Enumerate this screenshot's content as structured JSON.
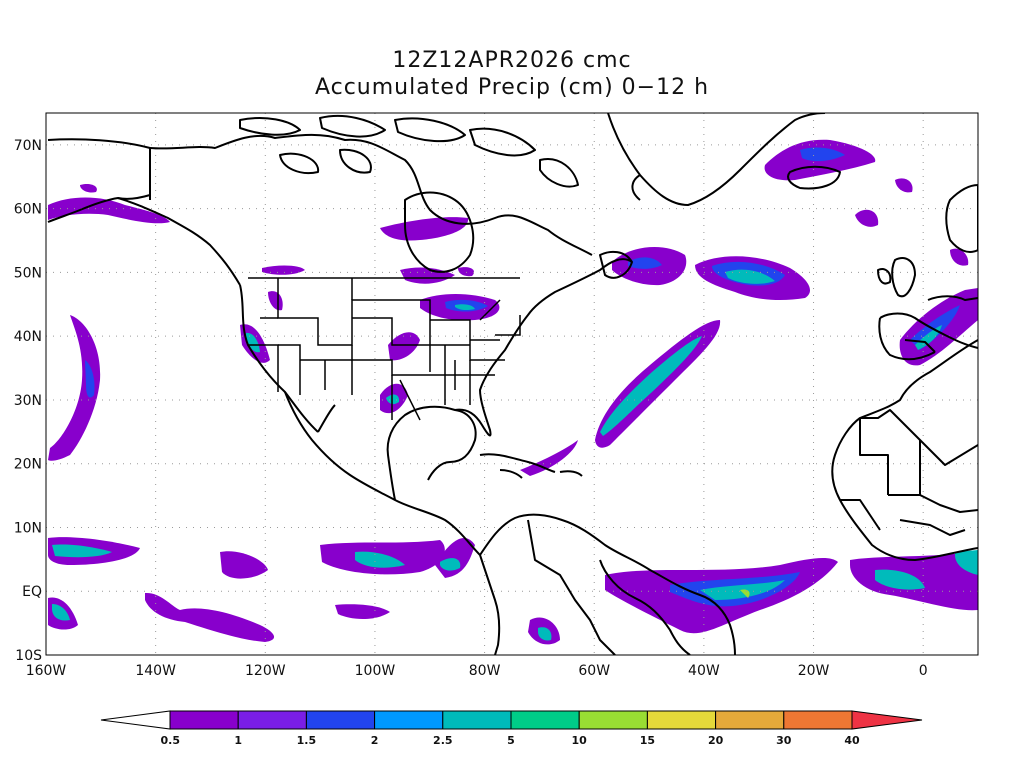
{
  "title": {
    "line1": "12Z12APR2026 cmc",
    "line2": "Accumulated Precip (cm) 0−12 h"
  },
  "map": {
    "lon_range": [
      -160,
      10
    ],
    "lat_range": [
      -10,
      75
    ],
    "lat_ticks": [
      {
        "value": 70,
        "label": "70N"
      },
      {
        "value": 60,
        "label": "60N"
      },
      {
        "value": 50,
        "label": "50N"
      },
      {
        "value": 40,
        "label": "40N"
      },
      {
        "value": 30,
        "label": "30N"
      },
      {
        "value": 20,
        "label": "20N"
      },
      {
        "value": 10,
        "label": "10N"
      },
      {
        "value": 0,
        "label": "EQ"
      },
      {
        "value": -10,
        "label": "10S"
      }
    ],
    "lon_ticks": [
      {
        "value": -160,
        "label": "160W"
      },
      {
        "value": -140,
        "label": "140W"
      },
      {
        "value": -120,
        "label": "120W"
      },
      {
        "value": -100,
        "label": "100W"
      },
      {
        "value": -80,
        "label": "80W"
      },
      {
        "value": -60,
        "label": "60W"
      },
      {
        "value": -40,
        "label": "40W"
      },
      {
        "value": -20,
        "label": "20W"
      },
      {
        "value": 0,
        "label": "0"
      }
    ],
    "gridlines": "dotted",
    "coast_color": "#000000",
    "precip_areas": [
      {
        "lon": -152,
        "lat": 34,
        "level": 1
      },
      {
        "lon": -152,
        "lat": 34,
        "level": 2
      },
      {
        "lon": -140,
        "lat": 0,
        "level": 1
      },
      {
        "lon": -147,
        "lat": 5,
        "level": 2
      },
      {
        "lon": -130,
        "lat": -4,
        "level": 1
      },
      {
        "lon": -128,
        "lat": 4,
        "level": 1
      },
      {
        "lon": -100,
        "lat": -4,
        "level": 1
      },
      {
        "lon": -100,
        "lat": 5,
        "level": 2
      },
      {
        "lon": -83,
        "lat": 3,
        "level": 3
      },
      {
        "lon": -68,
        "lat": -5,
        "level": 1
      },
      {
        "lon": -40,
        "lat": 0,
        "level": 2
      },
      {
        "lon": -30,
        "lat": 0,
        "level": 3
      },
      {
        "lon": -10,
        "lat": 2,
        "level": 2
      },
      {
        "lon": -45,
        "lat": 32,
        "level": 1
      },
      {
        "lon": -45,
        "lat": 32,
        "level": 4
      },
      {
        "lon": -32,
        "lat": 48,
        "level": 2
      },
      {
        "lon": -32,
        "lat": 48,
        "level": 4
      },
      {
        "lon": -55,
        "lat": 51,
        "level": 1
      },
      {
        "lon": -26,
        "lat": 68,
        "level": 1
      },
      {
        "lon": -90,
        "lat": 57,
        "level": 1
      },
      {
        "lon": -87,
        "lat": 44,
        "level": 1
      },
      {
        "lon": -100,
        "lat": 38,
        "level": 1
      },
      {
        "lon": -95,
        "lat": 30,
        "level": 1
      },
      {
        "lon": -122,
        "lat": 39,
        "level": 1
      },
      {
        "lon": -5,
        "lat": 42,
        "level": 2
      },
      {
        "lon": -152,
        "lat": 58,
        "level": 1
      },
      {
        "lon": -115,
        "lat": 50,
        "level": 1
      }
    ]
  },
  "colorbar": {
    "labels": [
      "0.5",
      "1",
      "1.5",
      "2",
      "2.5",
      "5",
      "10",
      "15",
      "20",
      "30",
      "40"
    ],
    "colors": [
      "#ffffff",
      "#8800cc",
      "#7a1ee6",
      "#2244ee",
      "#0099ff",
      "#00bbbb",
      "#00cc88",
      "#99dd33",
      "#e5d93a",
      "#e5a93a",
      "#ee7733",
      "#ee3344"
    ]
  }
}
